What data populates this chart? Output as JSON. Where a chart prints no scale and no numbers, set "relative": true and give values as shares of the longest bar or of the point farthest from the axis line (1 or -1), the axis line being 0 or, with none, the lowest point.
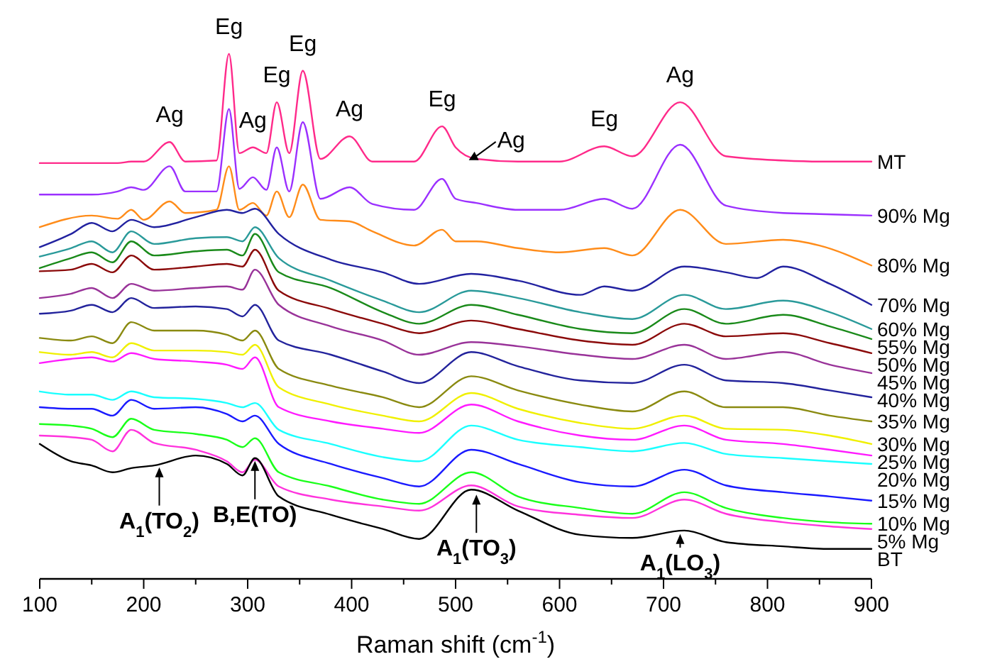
{
  "chart_data": {
    "type": "line",
    "relative": true,
    "xlabel": "Raman shift (cm$^{-1}$)",
    "xlim": [
      100,
      900
    ],
    "xticks": [
      100,
      {
        "value": 150,
        "label": null
      },
      200,
      {
        "value": 250,
        "label": null
      },
      300,
      {
        "value": 350,
        "label": null
      },
      400,
      {
        "value": 450,
        "label": null
      },
      500,
      {
        "value": 550,
        "label": null
      },
      600,
      {
        "value": 650,
        "label": null
      },
      700,
      {
        "value": 750,
        "label": null
      },
      800,
      {
        "value": 850,
        "label": null
      },
      900
    ],
    "legend": false,
    "grid": false,
    "series": [
      {
        "name": "MT",
        "color": "#ff2a8a",
        "x": [
          100,
          150,
          175,
          188,
          200,
          225,
          240,
          270,
          282,
          292,
          305,
          318,
          328,
          340,
          353,
          370,
          398,
          420,
          460,
          487,
          500,
          520,
          560,
          600,
          643,
          670,
          716,
          760,
          815,
          850,
          900
        ],
        "values": [
          0.792,
          0.792,
          0.792,
          0.795,
          0.795,
          0.832,
          0.795,
          0.797,
          1,
          0.811,
          0.822,
          0.811,
          0.908,
          0.811,
          0.968,
          0.8,
          0.843,
          0.795,
          0.795,
          0.862,
          0.822,
          0.8,
          0.795,
          0.795,
          0.824,
          0.805,
          0.908,
          0.805,
          0.797,
          0.795,
          0.795
        ]
      },
      {
        "name": "90% Mg",
        "color": "#9b30ff",
        "x": [
          100,
          150,
          175,
          188,
          200,
          225,
          240,
          270,
          282,
          292,
          305,
          318,
          328,
          340,
          353,
          370,
          398,
          420,
          460,
          487,
          500,
          520,
          560,
          600,
          643,
          670,
          716,
          760,
          815,
          850,
          900
        ],
        "values": [
          0.732,
          0.732,
          0.738,
          0.746,
          0.741,
          0.786,
          0.738,
          0.738,
          0.895,
          0.743,
          0.765,
          0.741,
          0.822,
          0.738,
          0.87,
          0.724,
          0.746,
          0.714,
          0.703,
          0.762,
          0.724,
          0.716,
          0.703,
          0.703,
          0.724,
          0.705,
          0.827,
          0.711,
          0.697,
          0.695,
          0.692
        ]
      },
      {
        "name": "80% Mg",
        "color": "#ff8c1a",
        "x": [
          100,
          150,
          175,
          188,
          200,
          225,
          240,
          270,
          282,
          292,
          305,
          318,
          328,
          340,
          353,
          370,
          398,
          420,
          460,
          487,
          500,
          520,
          560,
          600,
          643,
          670,
          716,
          760,
          815,
          850,
          900
        ],
        "values": [
          0.67,
          0.692,
          0.686,
          0.703,
          0.684,
          0.719,
          0.697,
          0.703,
          0.786,
          0.703,
          0.716,
          0.692,
          0.738,
          0.689,
          0.751,
          0.684,
          0.681,
          0.662,
          0.635,
          0.665,
          0.643,
          0.643,
          0.63,
          0.622,
          0.63,
          0.616,
          0.703,
          0.638,
          0.646,
          0.635,
          0.597
        ]
      },
      {
        "name": "70% Mg",
        "color": "#2222a0",
        "x": [
          100,
          130,
          150,
          170,
          188,
          210,
          250,
          280,
          295,
          307,
          330,
          380,
          430,
          465,
          515,
          560,
          620,
          643,
          670,
          720,
          760,
          790,
          815,
          860,
          900
        ],
        "values": [
          0.632,
          0.657,
          0.678,
          0.662,
          0.684,
          0.67,
          0.689,
          0.703,
          0.697,
          0.705,
          0.657,
          0.608,
          0.584,
          0.562,
          0.581,
          0.568,
          0.541,
          0.557,
          0.549,
          0.595,
          0.584,
          0.573,
          0.595,
          0.562,
          0.522
        ]
      },
      {
        "name": "60% Mg",
        "color": "#2a9a9a",
        "x": [
          100,
          130,
          150,
          170,
          188,
          210,
          250,
          280,
          295,
          307,
          330,
          380,
          430,
          465,
          515,
          560,
          620,
          670,
          720,
          760,
          815,
          860,
          900
        ],
        "values": [
          0.614,
          0.63,
          0.643,
          0.622,
          0.662,
          0.638,
          0.649,
          0.651,
          0.643,
          0.67,
          0.611,
          0.568,
          0.53,
          0.508,
          0.549,
          0.535,
          0.508,
          0.495,
          0.541,
          0.514,
          0.53,
          0.508,
          0.476
        ]
      },
      {
        "name": "55% Mg",
        "color": "#1a8a1a",
        "x": [
          100,
          130,
          150,
          170,
          188,
          210,
          250,
          280,
          295,
          307,
          330,
          380,
          430,
          465,
          515,
          560,
          620,
          670,
          720,
          760,
          815,
          860,
          900
        ],
        "values": [
          0.592,
          0.611,
          0.622,
          0.603,
          0.643,
          0.616,
          0.624,
          0.627,
          0.616,
          0.657,
          0.584,
          0.554,
          0.508,
          0.486,
          0.522,
          0.503,
          0.476,
          0.468,
          0.514,
          0.486,
          0.503,
          0.481,
          0.457
        ]
      },
      {
        "name": "50% Mg",
        "color": "#8b0a0a",
        "x": [
          100,
          130,
          150,
          170,
          188,
          210,
          250,
          280,
          295,
          307,
          330,
          380,
          430,
          465,
          515,
          560,
          620,
          670,
          720,
          760,
          815,
          860,
          900
        ],
        "values": [
          0.586,
          0.589,
          0.6,
          0.584,
          0.616,
          0.589,
          0.595,
          0.6,
          0.595,
          0.627,
          0.549,
          0.514,
          0.486,
          0.468,
          0.492,
          0.476,
          0.454,
          0.446,
          0.486,
          0.462,
          0.468,
          0.449,
          0.43
        ]
      },
      {
        "name": "45% Mg",
        "color": "#993399",
        "x": [
          100,
          130,
          150,
          170,
          188,
          210,
          250,
          280,
          295,
          307,
          330,
          380,
          430,
          465,
          515,
          560,
          620,
          670,
          720,
          760,
          815,
          860,
          900
        ],
        "values": [
          0.535,
          0.543,
          0.554,
          0.535,
          0.562,
          0.549,
          0.554,
          0.557,
          0.551,
          0.589,
          0.522,
          0.481,
          0.454,
          0.427,
          0.451,
          0.443,
          0.427,
          0.419,
          0.446,
          0.419,
          0.432,
          0.408,
          0.392
        ]
      },
      {
        "name": "40% Mg",
        "color": "#23239c",
        "x": [
          100,
          130,
          150,
          170,
          188,
          210,
          250,
          280,
          295,
          307,
          330,
          380,
          430,
          465,
          515,
          560,
          620,
          670,
          720,
          760,
          815,
          860,
          900
        ],
        "values": [
          0.505,
          0.511,
          0.522,
          0.508,
          0.535,
          0.516,
          0.519,
          0.514,
          0.5,
          0.522,
          0.454,
          0.427,
          0.395,
          0.373,
          0.432,
          0.405,
          0.378,
          0.373,
          0.408,
          0.378,
          0.373,
          0.359,
          0.346
        ]
      },
      {
        "name": "35% Mg",
        "color": "#8a8a10",
        "x": [
          100,
          130,
          150,
          170,
          188,
          210,
          250,
          280,
          295,
          307,
          330,
          380,
          430,
          465,
          515,
          560,
          620,
          670,
          720,
          760,
          815,
          860,
          900
        ],
        "values": [
          0.459,
          0.454,
          0.462,
          0.449,
          0.489,
          0.473,
          0.473,
          0.465,
          0.454,
          0.473,
          0.4,
          0.368,
          0.346,
          0.327,
          0.386,
          0.359,
          0.332,
          0.319,
          0.357,
          0.327,
          0.327,
          0.311,
          0.3
        ]
      },
      {
        "name": "30% Mg",
        "color": "#f0f000",
        "x": [
          100,
          130,
          150,
          170,
          188,
          210,
          250,
          280,
          295,
          307,
          330,
          380,
          430,
          465,
          515,
          560,
          620,
          670,
          720,
          760,
          815,
          860,
          900
        ],
        "values": [
          0.432,
          0.427,
          0.432,
          0.422,
          0.449,
          0.435,
          0.435,
          0.432,
          0.427,
          0.446,
          0.365,
          0.332,
          0.311,
          0.3,
          0.354,
          0.324,
          0.297,
          0.286,
          0.311,
          0.286,
          0.284,
          0.273,
          0.257
        ]
      },
      {
        "name": "25% Mg",
        "color": "#ff1aff",
        "x": [
          100,
          130,
          150,
          170,
          188,
          210,
          250,
          280,
          295,
          307,
          330,
          380,
          430,
          465,
          515,
          560,
          620,
          670,
          720,
          760,
          815,
          860,
          900
        ],
        "values": [
          0.411,
          0.419,
          0.422,
          0.414,
          0.43,
          0.419,
          0.414,
          0.408,
          0.4,
          0.422,
          0.327,
          0.3,
          0.286,
          0.278,
          0.332,
          0.3,
          0.273,
          0.265,
          0.292,
          0.265,
          0.257,
          0.246,
          0.235
        ]
      },
      {
        "name": "20% Mg",
        "color": "#1affff",
        "x": [
          100,
          130,
          150,
          170,
          188,
          210,
          250,
          280,
          295,
          307,
          330,
          380,
          430,
          465,
          515,
          560,
          620,
          670,
          720,
          760,
          815,
          860,
          900
        ],
        "values": [
          0.357,
          0.351,
          0.351,
          0.341,
          0.357,
          0.346,
          0.343,
          0.335,
          0.327,
          0.335,
          0.284,
          0.257,
          0.232,
          0.224,
          0.292,
          0.265,
          0.251,
          0.243,
          0.259,
          0.238,
          0.23,
          0.224,
          0.219
        ]
      },
      {
        "name": "15% Mg",
        "color": "#1a1aff",
        "x": [
          100,
          130,
          150,
          170,
          188,
          210,
          250,
          280,
          295,
          307,
          330,
          380,
          430,
          465,
          515,
          560,
          620,
          670,
          720,
          760,
          815,
          860,
          900
        ],
        "values": [
          0.327,
          0.324,
          0.324,
          0.311,
          0.341,
          0.324,
          0.327,
          0.314,
          0.3,
          0.311,
          0.257,
          0.219,
          0.192,
          0.176,
          0.246,
          0.219,
          0.184,
          0.176,
          0.208,
          0.178,
          0.165,
          0.157,
          0.149
        ]
      },
      {
        "name": "10% Mg",
        "color": "#1aff1a",
        "x": [
          100,
          130,
          150,
          170,
          188,
          210,
          250,
          280,
          295,
          307,
          330,
          380,
          430,
          465,
          515,
          560,
          620,
          670,
          720,
          760,
          815,
          860,
          900
        ],
        "values": [
          0.295,
          0.292,
          0.286,
          0.27,
          0.305,
          0.284,
          0.276,
          0.265,
          0.251,
          0.268,
          0.203,
          0.176,
          0.151,
          0.143,
          0.203,
          0.157,
          0.135,
          0.124,
          0.165,
          0.135,
          0.116,
          0.108,
          0.105
        ]
      },
      {
        "name": "5% Mg",
        "color": "#ff33dd",
        "x": [
          100,
          130,
          150,
          170,
          188,
          210,
          250,
          280,
          295,
          307,
          330,
          380,
          430,
          465,
          515,
          560,
          620,
          670,
          720,
          760,
          815,
          860,
          900
        ],
        "values": [
          0.273,
          0.27,
          0.265,
          0.243,
          0.284,
          0.259,
          0.246,
          0.224,
          0.203,
          0.227,
          0.176,
          0.151,
          0.138,
          0.13,
          0.178,
          0.138,
          0.122,
          0.116,
          0.151,
          0.124,
          0.108,
          0.1,
          0.095
        ]
      },
      {
        "name": "BT",
        "color": "#000000",
        "x": [
          100,
          130,
          150,
          170,
          188,
          210,
          250,
          280,
          295,
          307,
          330,
          380,
          430,
          465,
          515,
          560,
          620,
          670,
          720,
          760,
          815,
          860,
          900
        ],
        "values": [
          0.257,
          0.224,
          0.216,
          0.203,
          0.211,
          0.216,
          0.235,
          0.219,
          0.197,
          0.23,
          0.157,
          0.122,
          0.095,
          0.076,
          0.17,
          0.13,
          0.084,
          0.078,
          0.092,
          0.07,
          0.062,
          0.057,
          0.057
        ]
      }
    ],
    "annotations": [
      {
        "text": "Ag",
        "x": 225,
        "y": 0.832
      },
      {
        "text": "Eg",
        "x": 282,
        "y": 1
      },
      {
        "text": "Ag",
        "x": 305,
        "y": 0.822
      },
      {
        "text": "Eg",
        "x": 328,
        "y": 0.908
      },
      {
        "text": "Eg",
        "x": 353,
        "y": 0.968
      },
      {
        "text": "Ag",
        "x": 398,
        "y": 0.843
      },
      {
        "text": "Eg",
        "x": 487,
        "y": 0.862
      },
      {
        "text": "Ag",
        "x": 510,
        "y": 0.811
      },
      {
        "text": "Eg",
        "x": 643,
        "y": 0.824
      },
      {
        "text": "Ag",
        "x": 716,
        "y": 0.908
      },
      {
        "text": "A$_{1}$(TO$_{2}$)",
        "x": 215,
        "y": 0.218
      },
      {
        "text": "B,E(TO)",
        "x": 307,
        "y": 0.23
      },
      {
        "text": "A$_{1}$(TO$_{3}$)",
        "x": 520,
        "y": 0.166
      },
      {
        "text": "A$_{1}$(LO$_{3}$)",
        "x": 716,
        "y": 0.091
      }
    ]
  }
}
